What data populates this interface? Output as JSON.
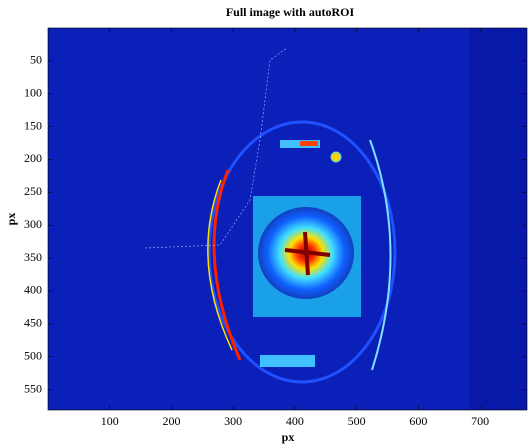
{
  "chart_data": {
    "type": "image",
    "title": "Full image with autoROI",
    "xlabel": "px",
    "ylabel": "px",
    "xlim": [
      0,
      776
    ],
    "ylim": [
      0,
      581
    ],
    "y_reversed": true,
    "xticks": [
      100,
      200,
      300,
      400,
      500,
      600,
      700
    ],
    "yticks": [
      50,
      100,
      150,
      200,
      250,
      300,
      350,
      400,
      450,
      500,
      550
    ]
  }
}
